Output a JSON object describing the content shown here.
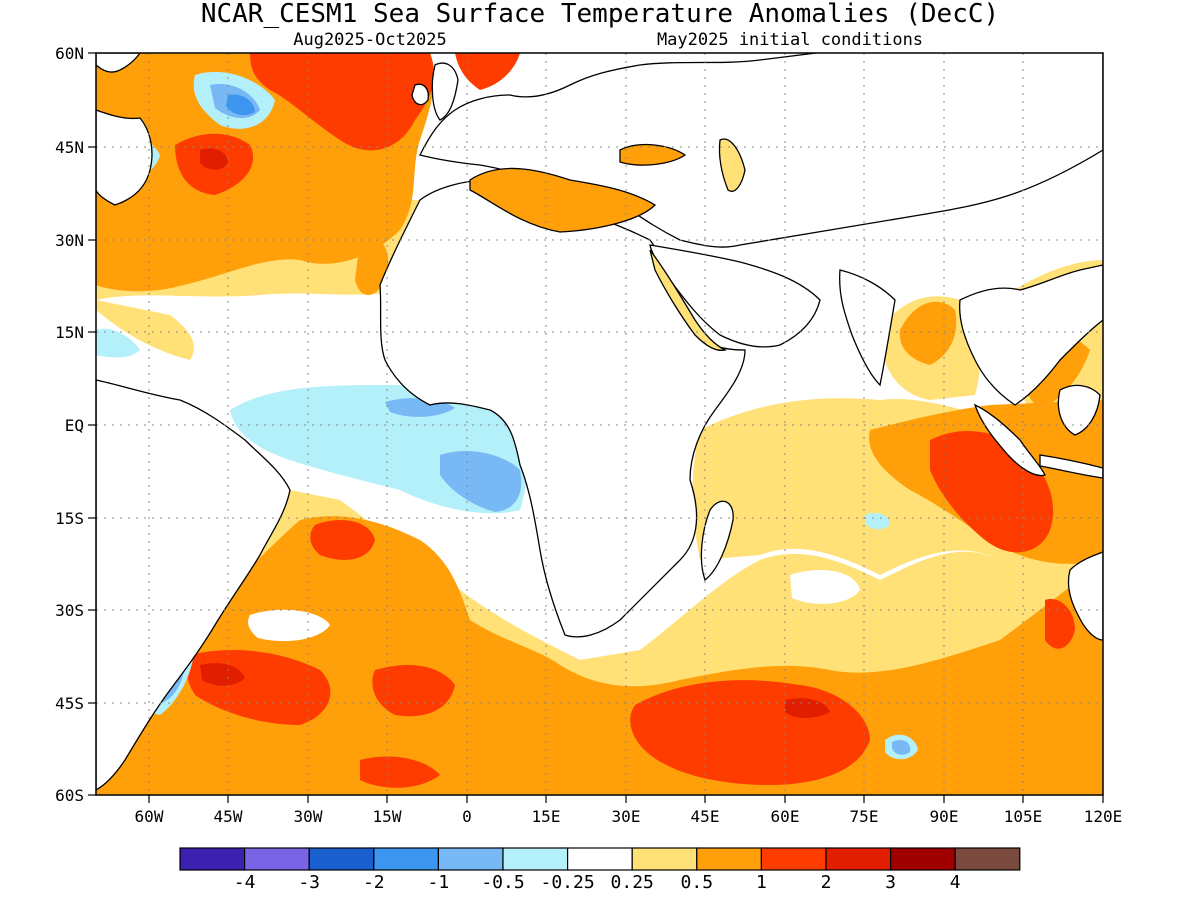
{
  "header": {
    "title": "NCAR_CESM1 Sea Surface Temperature Anomalies (DecC)",
    "period": "Aug2025-Oct2025",
    "init": "May2025 initial conditions"
  },
  "axes": {
    "y_labels": [
      "60N",
      "45N",
      "30N",
      "15N",
      "EQ",
      "15S",
      "30S",
      "45S",
      "60S"
    ],
    "x_labels": [
      "60W",
      "45W",
      "30W",
      "15W",
      "0",
      "15E",
      "30E",
      "45E",
      "60E",
      "75E",
      "90E",
      "105E",
      "120E"
    ],
    "lon_range": [
      -70,
      120
    ],
    "lat_range": [
      -60,
      60
    ],
    "grid": "dotted"
  },
  "colorbar": {
    "bins": [
      {
        "color": "#3c20b0"
      },
      {
        "color": "#7a64e6"
      },
      {
        "color": "#1a5fce"
      },
      {
        "color": "#3c96f0"
      },
      {
        "color": "#78b9f5"
      },
      {
        "color": "#b4f0fa"
      },
      {
        "color": "#ffffff"
      },
      {
        "color": "#ffe178"
      },
      {
        "color": "#ffa00a"
      },
      {
        "color": "#ff3c00"
      },
      {
        "color": "#e11e00"
      },
      {
        "color": "#a00000"
      },
      {
        "color": "#7a4a3e"
      }
    ],
    "labels": [
      "-4",
      "-3",
      "-2",
      "-1",
      "-0.5",
      "-0.25",
      "0.25",
      "0.5",
      "1",
      "2",
      "3",
      "4"
    ]
  },
  "colors": {
    "land": "#ffffff",
    "coast": "#000000",
    "neutral": "#ffffff",
    "pos_025_05": "#ffe178",
    "pos_05_1": "#ffa00a",
    "pos_1_2": "#ff3c00",
    "pos_2_3": "#e11e00",
    "neg_025_05": "#b4f0fa",
    "neg_05_1": "#78b9f5",
    "neg_1_2": "#3c96f0"
  }
}
